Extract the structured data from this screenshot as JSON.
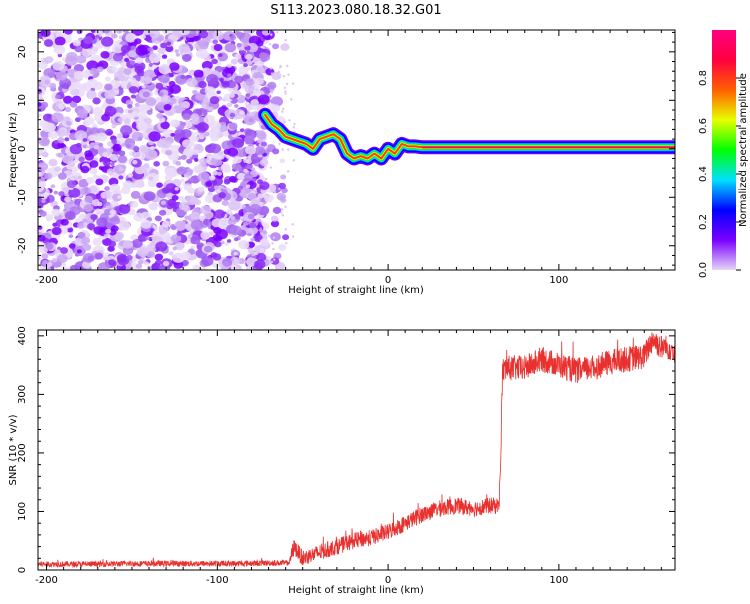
{
  "figure_title": "S113.2023.080.18.32.G01",
  "chart_data": [
    {
      "type": "heatmap",
      "xlabel": "Height of straight line (km)",
      "ylabel": "Frequency (Hz)",
      "xlim": [
        -205,
        168
      ],
      "ylim": [
        -25,
        24.5
      ],
      "x_ticks": [
        -200,
        -100,
        0,
        100
      ],
      "y_ticks": [
        -20,
        -10,
        0,
        10,
        20
      ],
      "grid": false,
      "noise_region_km": [
        -205,
        -60
      ],
      "signal_track": {
        "x": [
          -72,
          -68,
          -64,
          -60,
          -56,
          -52,
          -48,
          -44,
          -40,
          -36,
          -32,
          -28,
          -24,
          -20,
          -16,
          -12,
          -8,
          -4,
          0,
          4,
          8,
          12,
          16,
          20,
          30,
          40,
          50,
          60,
          70,
          80,
          90,
          100,
          110,
          120,
          130,
          140,
          150,
          160,
          168
        ],
        "y": [
          7,
          5,
          4,
          2.5,
          2,
          1.5,
          1,
          0,
          2,
          2.5,
          3,
          2,
          -1,
          -2,
          -1.5,
          -2,
          -1,
          -2,
          0,
          -1,
          1,
          0.5,
          0.5,
          0.3,
          0.3,
          0.3,
          0.3,
          0.3,
          0.3,
          0.3,
          0.3,
          0.3,
          0.3,
          0.3,
          0.3,
          0.3,
          0.3,
          0.3,
          0.3
        ]
      },
      "colorbar": {
        "label": "Normalized spectral amplitude",
        "range": [
          0,
          1
        ],
        "ticks": [
          "0.0",
          "0.2",
          "0.4",
          "0.6",
          "0.8"
        ],
        "colors": [
          "#e6d5f7",
          "#7a00ff",
          "#0000ff",
          "#00e0ff",
          "#00ff00",
          "#e8ff00",
          "#ff6000",
          "#ff0040",
          "#ff0080"
        ]
      }
    },
    {
      "type": "line",
      "xlabel": "Height of straight line (km)",
      "ylabel": "SNR (10 * v/v)",
      "xlim": [
        -205,
        168
      ],
      "ylim": [
        0,
        410
      ],
      "x_ticks": [
        -200,
        -100,
        0,
        100
      ],
      "y_ticks": [
        0,
        100,
        200,
        300,
        400
      ],
      "grid": false,
      "series": [
        {
          "color": "#e8302e",
          "x": [
            -205,
            -190,
            -170,
            -150,
            -130,
            -110,
            -90,
            -70,
            -58,
            -55,
            -50,
            -40,
            -30,
            -20,
            -10,
            0,
            10,
            20,
            30,
            40,
            50,
            60,
            65,
            66,
            67,
            70,
            80,
            90,
            100,
            110,
            120,
            130,
            140,
            150,
            155,
            160,
            165,
            168
          ],
          "y": [
            10,
            10,
            10,
            11,
            11,
            11,
            11,
            12,
            12,
            40,
            20,
            30,
            40,
            50,
            55,
            65,
            80,
            95,
            105,
            110,
            105,
            110,
            110,
            200,
            340,
            345,
            345,
            360,
            350,
            340,
            345,
            355,
            360,
            365,
            395,
            380,
            380,
            375
          ]
        }
      ]
    }
  ]
}
